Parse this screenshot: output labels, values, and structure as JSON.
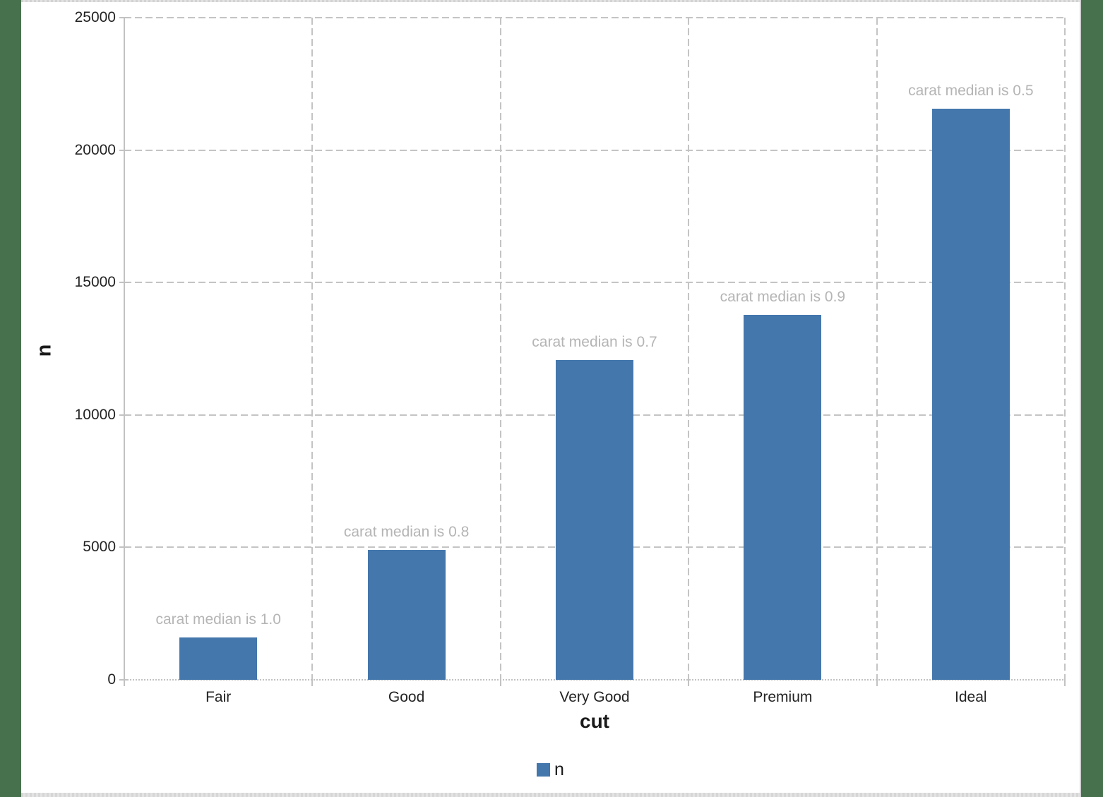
{
  "desktop": {
    "background_color": "#47704d"
  },
  "chart_data": {
    "type": "bar",
    "title": "",
    "categories": [
      "Fair",
      "Good",
      "Very Good",
      "Premium",
      "Ideal"
    ],
    "values": [
      1610,
      4906,
      12082,
      13791,
      21551
    ],
    "annotations": [
      "carat median is 1.0",
      "carat median is 0.8",
      "carat median is 0.7",
      "carat median is 0.9",
      "carat median is 0.5"
    ],
    "xlabel": "cut",
    "ylabel": "n",
    "ylim": [
      0,
      25000
    ],
    "ytick_step": 5000,
    "yticks": [
      "0",
      "5000",
      "10000",
      "15000",
      "20000",
      "25000"
    ],
    "legend": {
      "label": "n",
      "position": "bottom-center"
    },
    "grid": "dashed-both-axes",
    "colors": {
      "bar": "#4477ac",
      "annotation_text": "#b5b5b5",
      "gridline": "#c4c4c4",
      "axis_line": "#c2c2c2",
      "tick_text": "#232323"
    }
  }
}
